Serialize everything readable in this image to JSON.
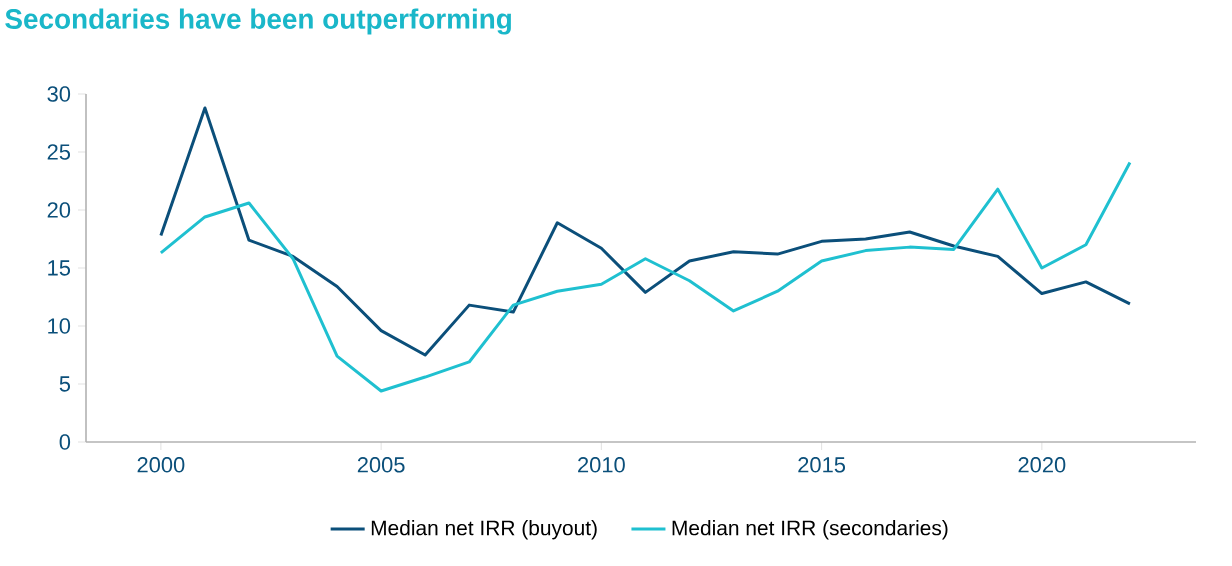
{
  "chart_data": {
    "type": "line",
    "title": "Secondaries have been outperforming",
    "x": [
      2000,
      2001,
      2002,
      2003,
      2004,
      2005,
      2006,
      2007,
      2008,
      2009,
      2010,
      2011,
      2012,
      2013,
      2014,
      2015,
      2016,
      2017,
      2018,
      2019,
      2020,
      2021,
      2022
    ],
    "series": [
      {
        "name": "Median net IRR (buyout)",
        "color": "#0b4f7a",
        "values": [
          17.8,
          28.8,
          17.4,
          16.0,
          13.4,
          9.6,
          7.5,
          11.8,
          11.2,
          18.9,
          16.7,
          12.9,
          15.6,
          16.4,
          16.2,
          17.3,
          17.5,
          18.1,
          16.9,
          16.0,
          12.8,
          13.8,
          11.9
        ]
      },
      {
        "name": "Median net IRR (secondaries)",
        "color": "#1fc0d0",
        "values": [
          16.3,
          19.4,
          20.6,
          15.8,
          7.4,
          4.4,
          5.6,
          6.9,
          11.8,
          13.0,
          13.6,
          15.8,
          13.9,
          11.3,
          13.0,
          15.6,
          16.5,
          16.8,
          16.6,
          21.8,
          15.0,
          17.0,
          24.1
        ]
      }
    ],
    "xlim": [
      1998.3,
      2023.5
    ],
    "ylim": [
      0,
      30
    ],
    "xticks": [
      2000,
      2005,
      2010,
      2015,
      2020
    ],
    "yticks": [
      0,
      5,
      10,
      15,
      20,
      25,
      30
    ],
    "grid": false,
    "legend": "bottom",
    "marker": "none",
    "line_style": "solid"
  }
}
